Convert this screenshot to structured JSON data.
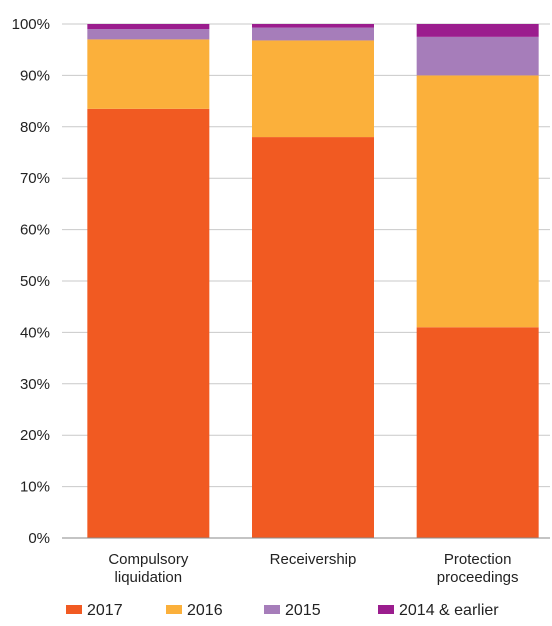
{
  "chart_data": {
    "type": "bar",
    "stacked": true,
    "percent": true,
    "categories": [
      [
        "Compulsory",
        "liquidation"
      ],
      [
        "Receivership"
      ],
      [
        "Protection",
        "proceedings"
      ]
    ],
    "series": [
      {
        "name": "2017",
        "color": "#f15a22",
        "values": [
          83.5,
          78,
          41
        ]
      },
      {
        "name": "2016",
        "color": "#fbb03b",
        "values": [
          13.5,
          18.8,
          49
        ]
      },
      {
        "name": "2015",
        "color": "#a67dba",
        "values": [
          2.0,
          2.5,
          7.5
        ]
      },
      {
        "name": "2014 & earlier",
        "color": "#9b1d8e",
        "values": [
          1.0,
          0.7,
          2.5
        ]
      }
    ],
    "y_ticks": [
      "0%",
      "10%",
      "20%",
      "30%",
      "40%",
      "50%",
      "60%",
      "70%",
      "80%",
      "90%",
      "100%"
    ],
    "ylim": [
      0,
      100
    ],
    "grid": true,
    "legend_position": "bottom"
  }
}
